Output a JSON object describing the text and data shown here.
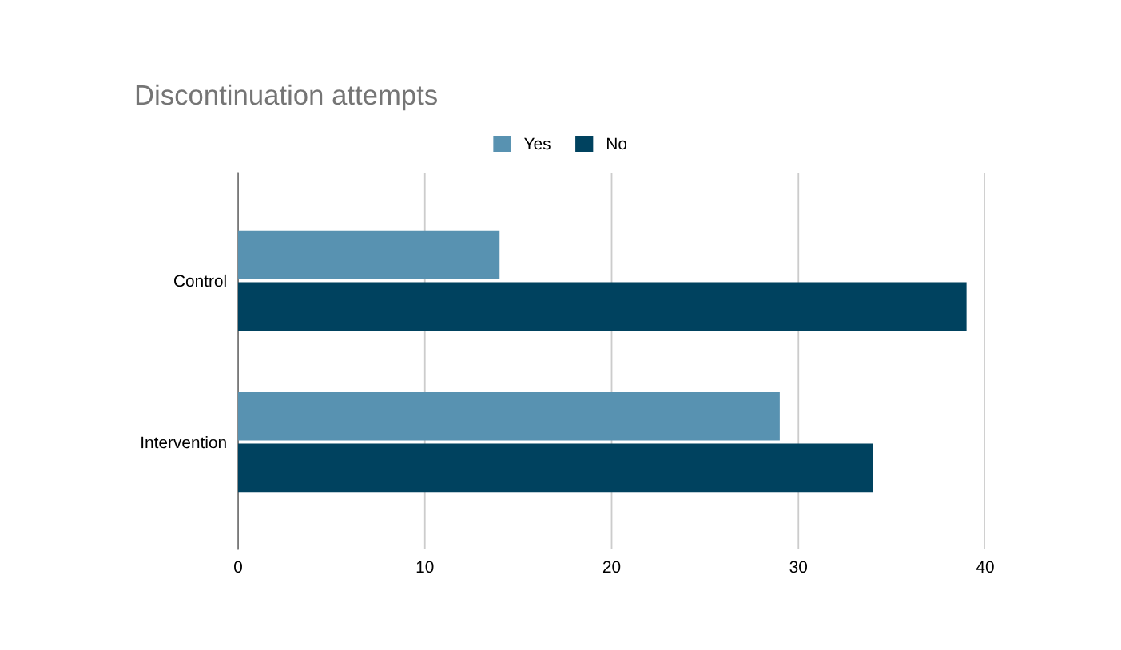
{
  "chart_data": {
    "type": "bar",
    "orientation": "horizontal",
    "title": "Discontinuation attempts",
    "categories": [
      "Control",
      "Intervention"
    ],
    "series": [
      {
        "name": "Yes",
        "color": "#5892b1",
        "values": [
          14,
          29
        ]
      },
      {
        "name": "No",
        "color": "#00425f",
        "values": [
          39,
          34
        ]
      }
    ],
    "xlim": [
      0,
      40
    ],
    "xticks": [
      0,
      10,
      20,
      30,
      40
    ],
    "grid": "x",
    "legend": "top"
  }
}
